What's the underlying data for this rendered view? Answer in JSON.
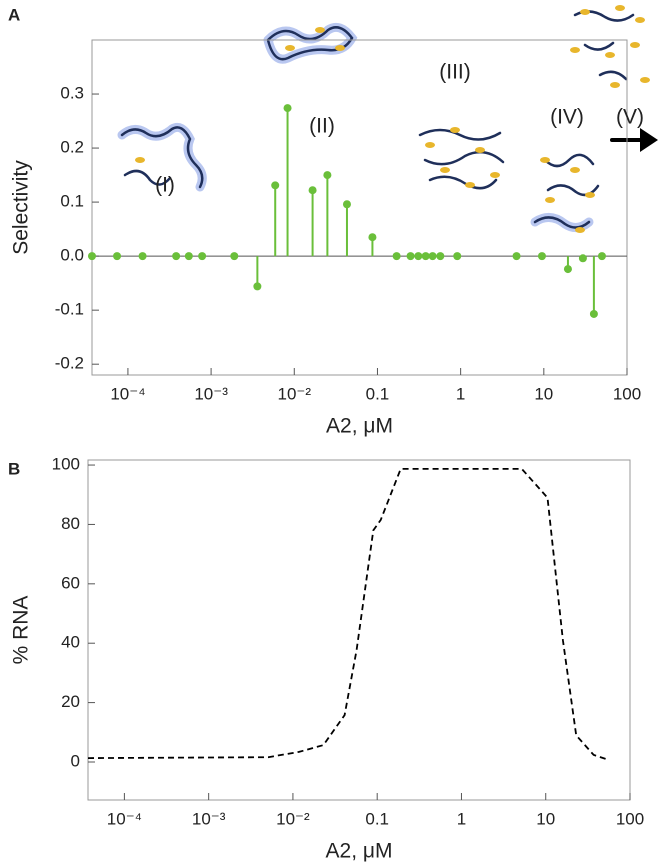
{
  "chart_data": [
    {
      "type": "stem",
      "panel": "A",
      "x": [
        3.7e-05,
        7.4e-05,
        0.00015,
        0.00038,
        0.00054,
        0.00078,
        0.0019,
        0.0036,
        0.0059,
        0.0083,
        0.0166,
        0.025,
        0.043,
        0.087,
        0.17,
        0.25,
        0.31,
        0.38,
        0.46,
        0.57,
        0.91,
        4.7,
        9.5,
        19.5,
        29.5,
        40,
        50
      ],
      "values": [
        0,
        0,
        0,
        0,
        0,
        0,
        0,
        -0.056,
        0.131,
        0.274,
        0.122,
        0.15,
        0.096,
        0.035,
        0,
        0,
        0,
        0,
        0,
        0,
        0,
        0,
        0,
        -0.024,
        -0.004,
        -0.107,
        0
      ],
      "color": "#6abf3a",
      "xlabel": "A2, μM",
      "ylabel": "Selectivity",
      "xscale": "log",
      "xlim": [
        3.7e-05,
        100
      ],
      "xticks": [
        {
          "value": 0.0001,
          "label": "10⁻⁴"
        },
        {
          "value": 0.001,
          "label": "10⁻³"
        },
        {
          "value": 0.01,
          "label": "10⁻²"
        },
        0.1,
        1,
        10,
        100
      ],
      "ylim": [
        -0.22,
        0.4
      ],
      "yticks": [
        -0.2,
        -0.1,
        {
          "value": 0,
          "label": "0.0"
        },
        0.1,
        0.2,
        0.3
      ],
      "annotations": [
        "(I)",
        "(II)",
        "(III)",
        "(IV)",
        "(V)"
      ]
    },
    {
      "type": "line",
      "panel": "B",
      "x": [
        3.7e-05,
        0.0051,
        0.0118,
        0.023,
        0.041,
        0.057,
        0.09,
        0.11,
        0.19,
        5.2,
        10.5,
        16,
        23,
        37,
        56
      ],
      "values": [
        1.3,
        1.6,
        3.4,
        5.7,
        15.8,
        37.7,
        78,
        81.5,
        98.7,
        98.7,
        89,
        41,
        9,
        2.4,
        0.7
      ],
      "color": "#000000",
      "linestyle": "dashed",
      "xlabel": "A2, μM",
      "ylabel": "% RNA",
      "xscale": "log",
      "xlim": [
        3.7e-05,
        100
      ],
      "xticks": [
        {
          "value": 0.0001,
          "label": "10⁻⁴"
        },
        {
          "value": 0.001,
          "label": "10⁻³"
        },
        {
          "value": 0.01,
          "label": "10⁻²"
        },
        0.1,
        1,
        10,
        100
      ],
      "ylim": [
        -12.8,
        101.7
      ],
      "yticks": [
        0,
        20,
        40,
        60,
        80,
        100
      ]
    }
  ]
}
